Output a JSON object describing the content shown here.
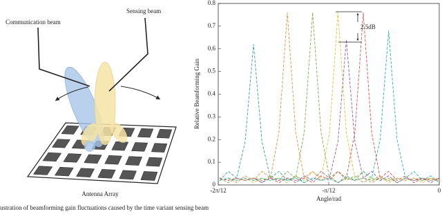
{
  "diagram": {
    "communication_label": "Communication beam",
    "sensing_label": "Sensing beam",
    "array_label": "Antenna Array"
  },
  "chart_data": {
    "type": "line",
    "xlabel": "Angle/rad",
    "ylabel": "Relative Beamforming Gain",
    "annotation": "2.5dB",
    "xlim": [
      -0.5236,
      0
    ],
    "xticks": [
      {
        "value": -0.5236,
        "label": "-2π/12"
      },
      {
        "value": -0.2618,
        "label": "-π/12"
      },
      0
    ],
    "ylim": [
      0,
      0.8
    ],
    "yticks": [
      0,
      0.1,
      0.2,
      0.3,
      0.4,
      0.5,
      0.6,
      0.7,
      0.8
    ],
    "x": [
      -0.52,
      -0.5,
      -0.48,
      -0.46,
      -0.44,
      -0.42,
      -0.4,
      -0.38,
      -0.36,
      -0.34,
      -0.32,
      -0.3,
      -0.28,
      -0.26,
      -0.24,
      -0.22,
      -0.2,
      -0.18,
      -0.16,
      -0.14,
      -0.12,
      -0.1,
      -0.08,
      -0.06,
      -0.04,
      -0.02,
      0
    ],
    "series": [
      {
        "color": "#3a9fa0",
        "values": [
          0.02,
          0.06,
          0.03,
          0.19,
          0.62,
          0.19,
          0.03,
          0.06,
          0.02,
          0.04,
          0.01,
          0.03,
          0.02,
          0.03,
          0.01,
          0.03,
          0.02,
          0.03,
          0.02,
          0.03,
          0.02,
          0.03,
          0.02,
          0.03,
          0.02,
          0.03,
          0.02
        ]
      },
      {
        "color": "#e8923a",
        "values": [
          0.02,
          0.03,
          0.01,
          0.04,
          0.02,
          0.06,
          0.03,
          0.23,
          0.76,
          0.23,
          0.03,
          0.06,
          0.02,
          0.04,
          0.01,
          0.03,
          0.02,
          0.03,
          0.01,
          0.03,
          0.02,
          0.03,
          0.02,
          0.03,
          0.02,
          0.03,
          0.02
        ]
      },
      {
        "color": "#7fae4a",
        "values": [
          0.03,
          0.01,
          0.03,
          0.02,
          0.03,
          0.01,
          0.04,
          0.02,
          0.06,
          0.03,
          0.23,
          0.76,
          0.23,
          0.03,
          0.06,
          0.02,
          0.04,
          0.01,
          0.03,
          0.02,
          0.03,
          0.01,
          0.03,
          0.02,
          0.03,
          0.02,
          0.03
        ]
      },
      {
        "color": "#e3c23a",
        "values": [
          0.02,
          0.03,
          0.02,
          0.03,
          0.01,
          0.03,
          0.02,
          0.03,
          0.01,
          0.04,
          0.02,
          0.06,
          0.03,
          0.23,
          0.76,
          0.23,
          0.03,
          0.06,
          0.02,
          0.04,
          0.01,
          0.03,
          0.02,
          0.03,
          0.01,
          0.03,
          0.02
        ]
      },
      {
        "color": "#8a5fb0",
        "values": [
          0.03,
          0.02,
          0.03,
          0.02,
          0.03,
          0.01,
          0.03,
          0.02,
          0.03,
          0.01,
          0.04,
          0.02,
          0.06,
          0.03,
          0.19,
          0.64,
          0.19,
          0.03,
          0.06,
          0.02,
          0.04,
          0.01,
          0.03,
          0.02,
          0.03,
          0.01,
          0.03
        ]
      },
      {
        "color": "#d9534f",
        "values": [
          0.03,
          0.02,
          0.03,
          0.02,
          0.03,
          0.02,
          0.03,
          0.01,
          0.03,
          0.02,
          0.03,
          0.01,
          0.04,
          0.02,
          0.06,
          0.03,
          0.23,
          0.76,
          0.23,
          0.03,
          0.06,
          0.02,
          0.04,
          0.01,
          0.03,
          0.02,
          0.03
        ]
      },
      {
        "color": "#2bb5a8",
        "values": [
          0.02,
          0.03,
          0.02,
          0.03,
          0.02,
          0.03,
          0.02,
          0.03,
          0.02,
          0.03,
          0.01,
          0.03,
          0.02,
          0.03,
          0.01,
          0.04,
          0.02,
          0.06,
          0.03,
          0.2,
          0.68,
          0.2,
          0.03,
          0.06,
          0.02,
          0.04,
          0.01
        ]
      }
    ]
  },
  "caption": "ustration of beamforming gain fluctuations caused by the time variant sensing beam"
}
